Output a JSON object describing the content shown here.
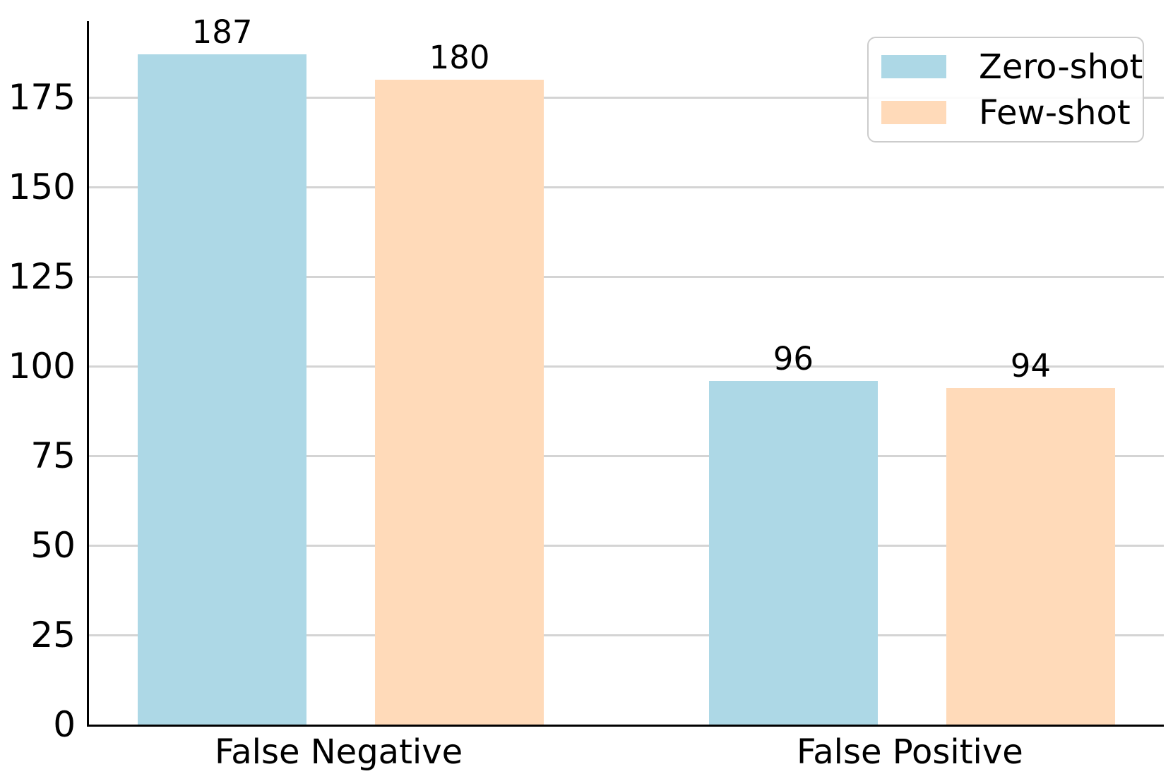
{
  "chart_data": {
    "type": "bar",
    "title": "",
    "xlabel": "",
    "ylabel": "",
    "categories": [
      "False Negative",
      "False Positive"
    ],
    "series": [
      {
        "name": "Zero-shot",
        "color": "#ADD8E6",
        "values": [
          187,
          96
        ]
      },
      {
        "name": "Few-shot",
        "color": "#FFDAB9",
        "values": [
          180,
          94
        ]
      }
    ],
    "bar_value_labels": true,
    "yticks": [
      0,
      25,
      50,
      75,
      100,
      125,
      150,
      175
    ],
    "ylim": [
      0,
      196.35
    ],
    "grid": "horizontal",
    "legend_position": "upper right"
  },
  "colors": {
    "grid": "#d4d4d4",
    "spine": "#000000",
    "background": "#ffffff",
    "legend_border": "#cccccc"
  }
}
